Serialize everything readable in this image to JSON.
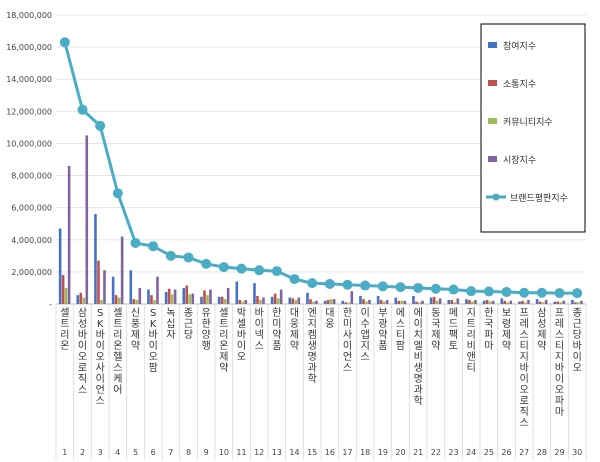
{
  "chart_data": {
    "type": "bar",
    "y_ticks": [
      "-",
      "2,000,000",
      "4,000,000",
      "6,000,000",
      "8,000,000",
      "10,000,000",
      "12,000,000",
      "14,000,000",
      "16,000,000",
      "18,000,000"
    ],
    "ylim": [
      0,
      18000000
    ],
    "ranks": [
      "1",
      "2",
      "3",
      "4",
      "5",
      "6",
      "7",
      "8",
      "9",
      "10",
      "11",
      "12",
      "13",
      "14",
      "15",
      "16",
      "17",
      "18",
      "19",
      "20",
      "21",
      "22",
      "23",
      "24",
      "25",
      "26",
      "27",
      "28",
      "29",
      "30"
    ],
    "categories": [
      "셀트리온",
      "삼성바이오로직스",
      "SK바이오사이언스",
      "셀트리온헬스케어",
      "신풍제약",
      "SK바이오팜",
      "녹십자",
      "종근당",
      "유한양행",
      "셀트리온제약",
      "박셀바이오",
      "바이넥스",
      "한미약품",
      "대웅제약",
      "엔지켐생명과학",
      "대웅",
      "한미사이언스",
      "이수앱지스",
      "부광약품",
      "에스티팜",
      "에이치엘비생명과학",
      "동국제약",
      "메드팩토",
      "지트리비앤티",
      "한국파마",
      "보령제약",
      "프레스티지바이오로직스",
      "삼성제약",
      "프레스티지바이오파마",
      "종근당바이오"
    ],
    "series": [
      {
        "name": "참여지수",
        "color": "#4472c4",
        "values": [
          4700000,
          550000,
          5600000,
          1700000,
          2100000,
          900000,
          750000,
          1000000,
          450000,
          450000,
          1400000,
          1300000,
          450000,
          400000,
          700000,
          200000,
          200000,
          500000,
          500000,
          400000,
          500000,
          400000,
          250000,
          300000,
          200000,
          350000,
          150000,
          300000,
          150000,
          250000
        ]
      },
      {
        "name": "소통지수",
        "color": "#c0504d",
        "values": [
          1800000,
          700000,
          2700000,
          550000,
          300000,
          550000,
          950000,
          1150000,
          850000,
          450000,
          250000,
          500000,
          650000,
          350000,
          300000,
          250000,
          100000,
          300000,
          250000,
          200000,
          150000,
          450000,
          250000,
          250000,
          250000,
          200000,
          200000,
          150000,
          150000,
          100000
        ]
      },
      {
        "name": "커뮤니티지수",
        "color": "#9bbb59",
        "values": [
          1000000,
          400000,
          250000,
          400000,
          250000,
          250000,
          600000,
          600000,
          550000,
          300000,
          150000,
          250000,
          350000,
          250000,
          150000,
          300000,
          100000,
          150000,
          150000,
          200000,
          100000,
          200000,
          100000,
          150000,
          150000,
          100000,
          100000,
          100000,
          100000,
          100000
        ]
      },
      {
        "name": "시장지수",
        "color": "#8064a2",
        "values": [
          8600000,
          10500000,
          2100000,
          4200000,
          1000000,
          1700000,
          900000,
          650000,
          900000,
          1000000,
          250000,
          400000,
          900000,
          400000,
          200000,
          300000,
          800000,
          250000,
          250000,
          200000,
          200000,
          350000,
          350000,
          250000,
          200000,
          200000,
          250000,
          250000,
          200000,
          200000
        ]
      }
    ],
    "line": {
      "name": "브랜드평판지수",
      "color": "#4bacc6",
      "values": [
        16300000,
        12100000,
        11100000,
        6900000,
        3800000,
        3600000,
        3000000,
        2900000,
        2500000,
        2300000,
        2200000,
        2100000,
        2050000,
        1550000,
        1300000,
        1250000,
        1200000,
        1150000,
        1100000,
        1050000,
        1000000,
        950000,
        900000,
        800000,
        780000,
        750000,
        700000,
        700000,
        680000,
        680000
      ]
    },
    "legend_position": "top-right",
    "grid": true
  }
}
